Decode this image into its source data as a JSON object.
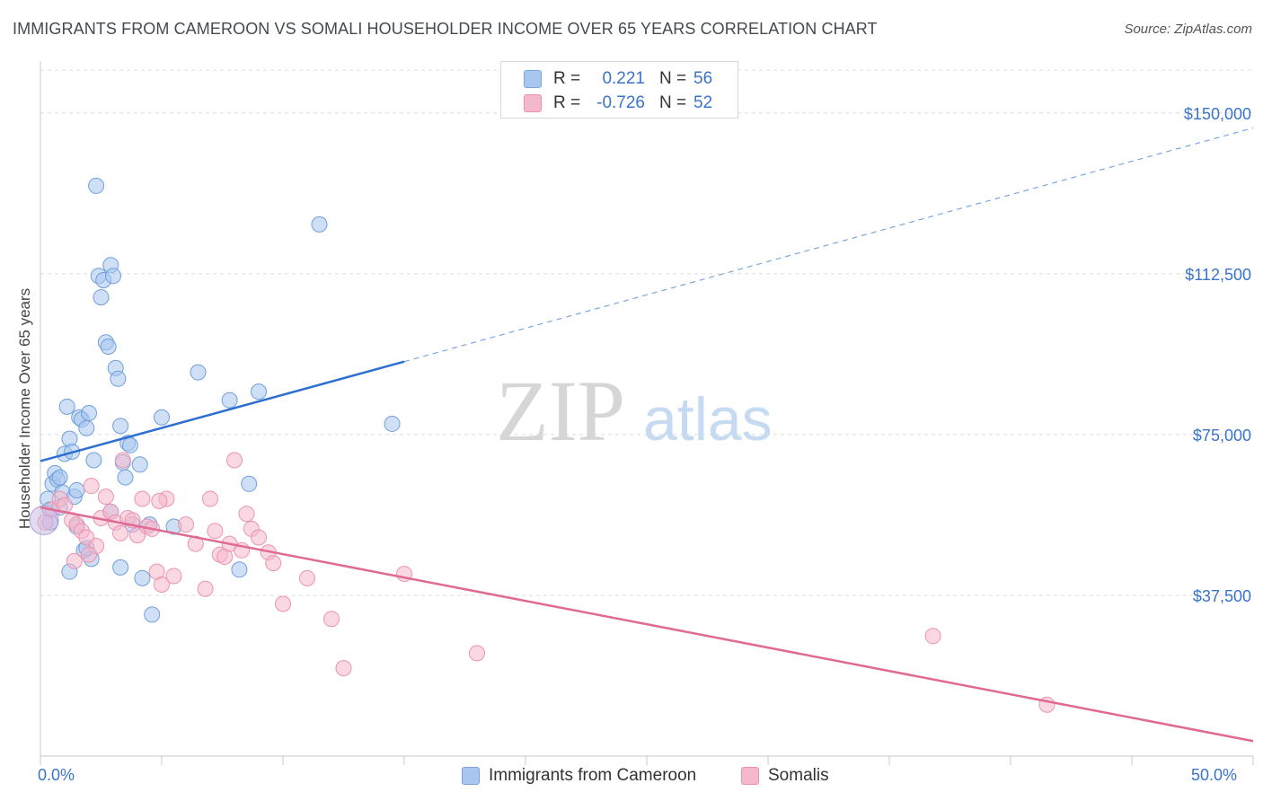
{
  "title": "IMMIGRANTS FROM CAMEROON VS SOMALI HOUSEHOLDER INCOME OVER 65 YEARS CORRELATION CHART",
  "source": "Source: ZipAtlas.com",
  "watermark": {
    "zip": "ZIP",
    "atlas": "atlas"
  },
  "legend": {
    "rows": [
      {
        "r_label": "R =",
        "r_value": "0.221",
        "n_label": "N =",
        "n_value": "56",
        "color": "#a8c6ee",
        "border": "#7aa6e0"
      },
      {
        "r_label": "R =",
        "r_value": "-0.726",
        "n_label": "N =",
        "n_value": "52",
        "color": "#f5b8ca",
        "border": "#ee8fae"
      }
    ]
  },
  "bottom_legend": {
    "items": [
      {
        "label": "Immigrants from Cameroon",
        "color": "#a8c6ee",
        "border": "#7aa6e0"
      },
      {
        "label": "Somalis",
        "color": "#f5b8ca",
        "border": "#ee8fae"
      }
    ]
  },
  "chart_data": {
    "type": "scatter",
    "title": "IMMIGRANTS FROM CAMEROON VS SOMALI HOUSEHOLDER INCOME OVER 65 YEARS CORRELATION CHART",
    "xlabel": "",
    "ylabel": "Householder Income Over 65 years",
    "xlim": [
      0,
      50
    ],
    "ylim": [
      0,
      160000
    ],
    "x_tick_labels": [
      "0.0%",
      "50.0%"
    ],
    "y_ticks": [
      37500,
      75000,
      112500,
      150000
    ],
    "y_tick_labels": [
      "$37,500",
      "$75,000",
      "$112,500",
      "$150,000"
    ],
    "series": [
      {
        "name": "Immigrants from Cameroon",
        "color": "#a8c6ee",
        "stroke": "#6f9fdc",
        "trend": {
          "x0": 0,
          "y0": 68800,
          "x1": 15,
          "y1": 92000,
          "dash_to_x": 50,
          "dash_to_y": 146500,
          "color": "#2e6fd0"
        },
        "points": [
          [
            0.3,
            60000
          ],
          [
            0.4,
            57500
          ],
          [
            0.5,
            63500
          ],
          [
            0.6,
            66000
          ],
          [
            0.7,
            64500
          ],
          [
            0.8,
            65000
          ],
          [
            0.9,
            61500
          ],
          [
            1.0,
            70500
          ],
          [
            1.1,
            81500
          ],
          [
            1.2,
            74000
          ],
          [
            1.3,
            71000
          ],
          [
            1.4,
            60500
          ],
          [
            1.5,
            62000
          ],
          [
            1.6,
            79000
          ],
          [
            1.7,
            78500
          ],
          [
            1.8,
            48000
          ],
          [
            1.9,
            76500
          ],
          [
            2.0,
            80000
          ],
          [
            2.1,
            46000
          ],
          [
            2.2,
            69000
          ],
          [
            2.3,
            133000
          ],
          [
            2.4,
            112000
          ],
          [
            2.5,
            107000
          ],
          [
            2.6,
            111000
          ],
          [
            2.7,
            96500
          ],
          [
            2.8,
            95500
          ],
          [
            2.9,
            114500
          ],
          [
            3.0,
            112000
          ],
          [
            3.1,
            90500
          ],
          [
            3.2,
            88000
          ],
          [
            3.3,
            77000
          ],
          [
            3.4,
            68500
          ],
          [
            3.5,
            65000
          ],
          [
            3.6,
            73000
          ],
          [
            3.7,
            72500
          ],
          [
            3.8,
            54000
          ],
          [
            4.2,
            41500
          ],
          [
            4.5,
            54000
          ],
          [
            4.6,
            33000
          ],
          [
            5.0,
            79000
          ],
          [
            5.5,
            53500
          ],
          [
            6.5,
            89500
          ],
          [
            7.8,
            83000
          ],
          [
            8.2,
            43500
          ],
          [
            8.6,
            63500
          ],
          [
            9.0,
            85000
          ],
          [
            11.5,
            124000
          ],
          [
            14.5,
            77500
          ],
          [
            1.2,
            43000
          ],
          [
            1.5,
            53500
          ],
          [
            0.4,
            54500
          ],
          [
            1.9,
            48500
          ],
          [
            3.3,
            44000
          ],
          [
            0.8,
            58000
          ],
          [
            2.9,
            57000
          ],
          [
            4.1,
            68000
          ]
        ]
      },
      {
        "name": "Somalis",
        "color": "#f5b8ca",
        "stroke": "#ec93b0",
        "trend": {
          "x0": 0,
          "y0": 58000,
          "x1": 50,
          "y1": 3500,
          "color": "#e06a92"
        },
        "points": [
          [
            0.2,
            54500
          ],
          [
            0.5,
            57500
          ],
          [
            0.8,
            60000
          ],
          [
            1.0,
            58500
          ],
          [
            1.3,
            55000
          ],
          [
            1.5,
            54000
          ],
          [
            1.7,
            52500
          ],
          [
            1.9,
            51000
          ],
          [
            2.1,
            63000
          ],
          [
            2.3,
            49000
          ],
          [
            2.5,
            55500
          ],
          [
            2.7,
            60500
          ],
          [
            2.9,
            57000
          ],
          [
            3.1,
            54500
          ],
          [
            3.3,
            52000
          ],
          [
            3.4,
            69000
          ],
          [
            3.6,
            55500
          ],
          [
            3.8,
            55000
          ],
          [
            4.0,
            51500
          ],
          [
            4.2,
            60000
          ],
          [
            4.4,
            53500
          ],
          [
            4.6,
            53000
          ],
          [
            4.8,
            43000
          ],
          [
            5.0,
            40000
          ],
          [
            5.2,
            60000
          ],
          [
            5.5,
            42000
          ],
          [
            6.0,
            54000
          ],
          [
            6.4,
            49500
          ],
          [
            7.0,
            60000
          ],
          [
            7.2,
            52500
          ],
          [
            7.4,
            47000
          ],
          [
            7.6,
            46500
          ],
          [
            7.8,
            49500
          ],
          [
            8.0,
            69000
          ],
          [
            8.3,
            48000
          ],
          [
            8.7,
            53000
          ],
          [
            9.0,
            51000
          ],
          [
            9.4,
            47500
          ],
          [
            9.6,
            45000
          ],
          [
            10.0,
            35500
          ],
          [
            11.0,
            41500
          ],
          [
            12.0,
            32000
          ],
          [
            12.5,
            20500
          ],
          [
            15.0,
            42500
          ],
          [
            18.0,
            24000
          ],
          [
            36.8,
            28000
          ],
          [
            41.5,
            12000
          ],
          [
            1.4,
            45500
          ],
          [
            2.0,
            47000
          ],
          [
            4.9,
            59500
          ],
          [
            6.8,
            39000
          ],
          [
            8.5,
            56500
          ]
        ]
      }
    ]
  }
}
